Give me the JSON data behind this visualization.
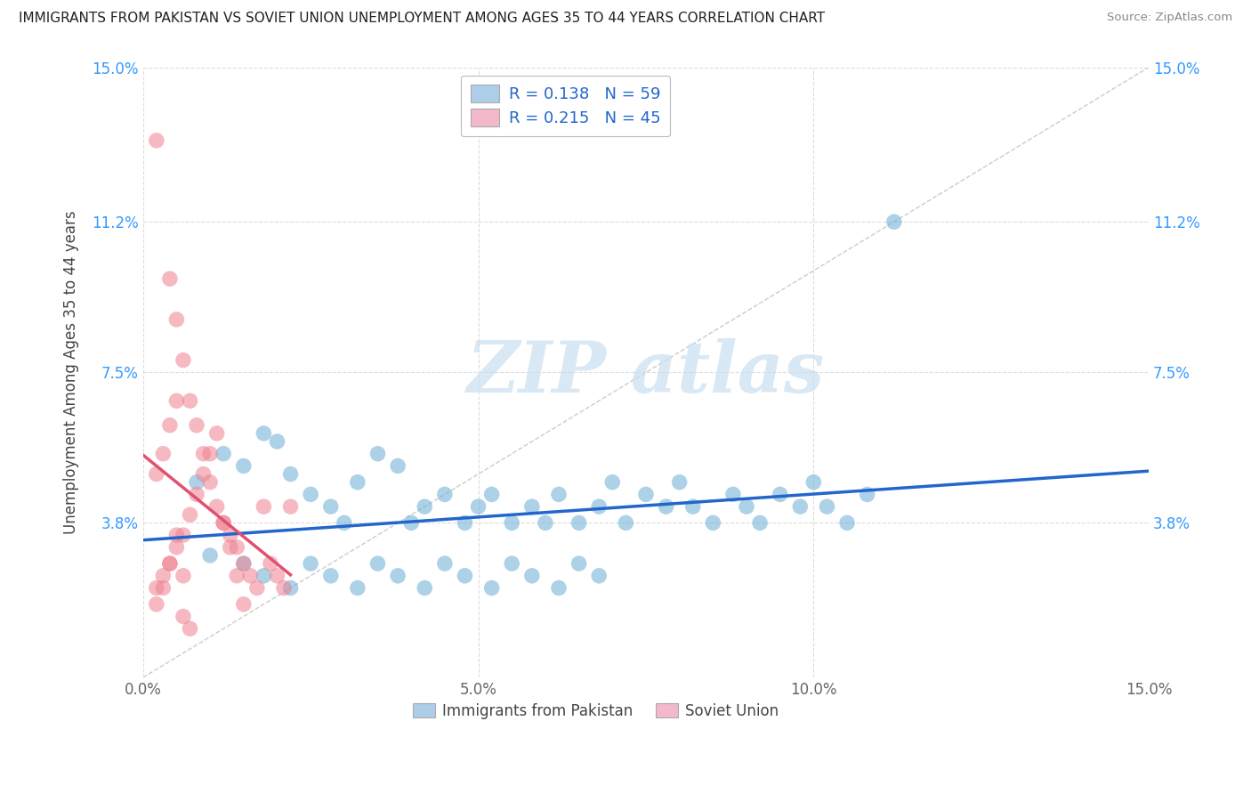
{
  "title": "IMMIGRANTS FROM PAKISTAN VS SOVIET UNION UNEMPLOYMENT AMONG AGES 35 TO 44 YEARS CORRELATION CHART",
  "source": "Source: ZipAtlas.com",
  "ylabel": "Unemployment Among Ages 35 to 44 years",
  "xlim": [
    0.0,
    0.15
  ],
  "ylim": [
    0.0,
    0.15
  ],
  "xticks": [
    0.0,
    0.05,
    0.1,
    0.15
  ],
  "xtick_labels": [
    "0.0%",
    "5.0%",
    "10.0%",
    "15.0%"
  ],
  "yticks": [
    0.038,
    0.075,
    0.112,
    0.15
  ],
  "ytick_labels": [
    "3.8%",
    "7.5%",
    "11.2%",
    "15.0%"
  ],
  "legend_entries": [
    {
      "label": "R = 0.138   N = 59",
      "facecolor": "#aecde8"
    },
    {
      "label": "R = 0.215   N = 45",
      "facecolor": "#f4b8cb"
    }
  ],
  "bottom_legend": [
    "Immigrants from Pakistan",
    "Soviet Union"
  ],
  "bottom_legend_colors": [
    "#aecde8",
    "#f4b8cb"
  ],
  "pakistan_color": "#6baed6",
  "soviet_color": "#f08090",
  "pakistan_line_color": "#2266cc",
  "soviet_line_color": "#e05070",
  "tick_color_y": "#3399ff",
  "tick_color_x": "#666666",
  "watermark_color": "#c8dff0",
  "background_color": "#ffffff",
  "grid_color": "#dddddd",
  "diag_color": "#cccccc",
  "pakistan_x": [
    0.008,
    0.012,
    0.015,
    0.018,
    0.02,
    0.022,
    0.025,
    0.028,
    0.03,
    0.032,
    0.035,
    0.038,
    0.04,
    0.042,
    0.045,
    0.048,
    0.05,
    0.052,
    0.055,
    0.058,
    0.06,
    0.062,
    0.065,
    0.068,
    0.07,
    0.072,
    0.075,
    0.078,
    0.08,
    0.082,
    0.085,
    0.088,
    0.09,
    0.092,
    0.095,
    0.098,
    0.1,
    0.102,
    0.105,
    0.108,
    0.01,
    0.015,
    0.018,
    0.022,
    0.025,
    0.028,
    0.032,
    0.035,
    0.038,
    0.042,
    0.045,
    0.048,
    0.052,
    0.055,
    0.058,
    0.062,
    0.065,
    0.068,
    0.112
  ],
  "pakistan_y": [
    0.048,
    0.055,
    0.052,
    0.06,
    0.058,
    0.05,
    0.045,
    0.042,
    0.038,
    0.048,
    0.055,
    0.052,
    0.038,
    0.042,
    0.045,
    0.038,
    0.042,
    0.045,
    0.038,
    0.042,
    0.038,
    0.045,
    0.038,
    0.042,
    0.048,
    0.038,
    0.045,
    0.042,
    0.048,
    0.042,
    0.038,
    0.045,
    0.042,
    0.038,
    0.045,
    0.042,
    0.048,
    0.042,
    0.038,
    0.045,
    0.03,
    0.028,
    0.025,
    0.022,
    0.028,
    0.025,
    0.022,
    0.028,
    0.025,
    0.022,
    0.028,
    0.025,
    0.022,
    0.028,
    0.025,
    0.022,
    0.028,
    0.025,
    0.112
  ],
  "soviet_x": [
    0.002,
    0.004,
    0.005,
    0.006,
    0.007,
    0.008,
    0.009,
    0.01,
    0.011,
    0.012,
    0.013,
    0.014,
    0.015,
    0.016,
    0.017,
    0.018,
    0.019,
    0.02,
    0.021,
    0.022,
    0.002,
    0.003,
    0.004,
    0.005,
    0.006,
    0.007,
    0.008,
    0.009,
    0.01,
    0.011,
    0.012,
    0.013,
    0.014,
    0.015,
    0.002,
    0.003,
    0.004,
    0.005,
    0.006,
    0.007,
    0.002,
    0.003,
    0.004,
    0.005,
    0.006
  ],
  "soviet_y": [
    0.132,
    0.098,
    0.088,
    0.078,
    0.068,
    0.062,
    0.055,
    0.048,
    0.042,
    0.038,
    0.035,
    0.032,
    0.028,
    0.025,
    0.022,
    0.042,
    0.028,
    0.025,
    0.022,
    0.042,
    0.022,
    0.025,
    0.028,
    0.032,
    0.035,
    0.04,
    0.045,
    0.05,
    0.055,
    0.06,
    0.038,
    0.032,
    0.025,
    0.018,
    0.018,
    0.022,
    0.028,
    0.035,
    0.015,
    0.012,
    0.05,
    0.055,
    0.062,
    0.068,
    0.025
  ]
}
